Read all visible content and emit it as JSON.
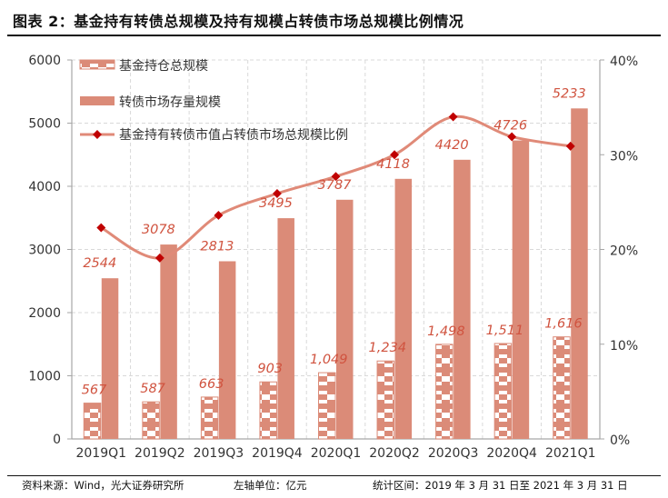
{
  "header": {
    "title": "图表 2：基金持有转债总规模及持有规模占转债市场总规模比例情况"
  },
  "footer": {
    "source": "资料来源：Wind，光大证券研究所",
    "unit": "左轴单位：亿元",
    "period": "统计区间：2019 年 3 月 31 日至 2021 年 3 月 31 日"
  },
  "colors": {
    "bar": "#db8b78",
    "label": "#d0533f",
    "line": "#e08a78",
    "marker": "#c00000",
    "grid": "#d9d9d9",
    "axis": "#a6a6a6"
  },
  "chart_data": {
    "type": "bar",
    "title": "基金持有转债总规模及持有规模占转债市场总规模比例情况",
    "categories": [
      "2019Q1",
      "2019Q2",
      "2019Q3",
      "2019Q4",
      "2020Q1",
      "2020Q2",
      "2020Q3",
      "2020Q4",
      "2021Q1"
    ],
    "series": [
      {
        "name": "基金持仓总规模",
        "kind": "bar",
        "pattern": "hatched",
        "axis": "left",
        "values": [
          567,
          587,
          663,
          903,
          1049,
          1234,
          1498,
          1511,
          1616
        ],
        "labels": [
          "567",
          "587",
          "663",
          "903",
          "1,049",
          "1,234",
          "1,498",
          "1,511",
          "1,616"
        ]
      },
      {
        "name": "转债市场存量规模",
        "kind": "bar",
        "pattern": "solid",
        "axis": "left",
        "values": [
          2544,
          3078,
          2813,
          3495,
          3787,
          4118,
          4420,
          4726,
          5233
        ],
        "labels": [
          "2544",
          "3078",
          "2813",
          "3495",
          "3787",
          "4118",
          "4420",
          "4726",
          "5233"
        ]
      },
      {
        "name": "基金持有转债市值占转债市场总规模比例",
        "kind": "line",
        "axis": "right",
        "unit": "%",
        "values": [
          22.3,
          19.1,
          23.6,
          25.9,
          27.7,
          30.0,
          34.0,
          31.9,
          30.9
        ]
      }
    ],
    "left_axis": {
      "label": "亿元",
      "ylim": [
        0,
        6000
      ],
      "ticks": [
        "0",
        "1000",
        "2000",
        "3000",
        "4000",
        "5000",
        "6000"
      ]
    },
    "right_axis": {
      "ylim": [
        0,
        40
      ],
      "ticks": [
        "0%",
        "10%",
        "20%",
        "30%",
        "40%"
      ]
    },
    "grid": true,
    "legend_position": "top-left"
  }
}
